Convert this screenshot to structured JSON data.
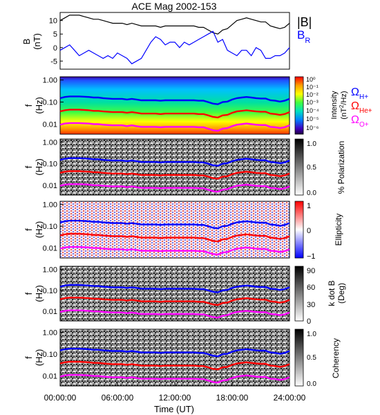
{
  "figure": {
    "title": "ACE Mag 2002-153",
    "xlabel": "Time (UT)",
    "xticks": [
      "00:00:00",
      "06:00:00",
      "12:00:00",
      "18:00:00",
      "24:00:00"
    ]
  },
  "colors": {
    "B_total": "#000000",
    "B_R": "#0000ff",
    "omega_H": "#0000ff",
    "omega_He": "#ff0000",
    "omega_O": "#ff00ff"
  },
  "chart_data": [
    {
      "type": "line",
      "panel": "magnetic-field",
      "ylabel": "B\n(nT)",
      "yticks": [
        "10",
        "5",
        "0",
        "-5"
      ],
      "ylim": [
        -8,
        13
      ],
      "x_hours": [
        0,
        0.5,
        1,
        1.5,
        2,
        2.5,
        3,
        3.5,
        4,
        4.5,
        5,
        5.5,
        6,
        6.5,
        7,
        7.5,
        8,
        8.5,
        9,
        9.5,
        10,
        10.5,
        11,
        11.5,
        12,
        12.5,
        13,
        13.5,
        14,
        14.5,
        15,
        15.5,
        16,
        16.5,
        17,
        17.5,
        18,
        18.5,
        19,
        19.5,
        20,
        20.5,
        21,
        21.5,
        22,
        22.5,
        23,
        23.5,
        24
      ],
      "series": [
        {
          "name": "|B|",
          "values": [
            10,
            11,
            12,
            12,
            12,
            11.5,
            11,
            10.5,
            10.5,
            10,
            9.5,
            9,
            9,
            9,
            8.5,
            9,
            8.5,
            8,
            8,
            8,
            8,
            7.5,
            8,
            8,
            8,
            8,
            8,
            8,
            8,
            7.5,
            7.5,
            6.5,
            5.5,
            5,
            6.5,
            7,
            8.5,
            10,
            10.5,
            11,
            10.5,
            10,
            9.5,
            9.5,
            8,
            7.5,
            7,
            7.5,
            9
          ]
        },
        {
          "name": "B_R",
          "values": [
            -1,
            0,
            1,
            -1,
            -3,
            -2,
            -1,
            -2,
            -3,
            -4,
            -3,
            -4,
            -2,
            -3,
            -4,
            -6,
            -5,
            -4,
            -1,
            2,
            4,
            3,
            1,
            2,
            2,
            0,
            2,
            1,
            2,
            3,
            4,
            5,
            6,
            2,
            3,
            -1,
            -2,
            -3,
            -1,
            -1,
            -3,
            0,
            -1,
            -4,
            -4,
            -3,
            -3,
            -2,
            0
          ]
        }
      ],
      "legend": [
        "|B|",
        "B_R"
      ]
    },
    {
      "type": "heatmap",
      "panel": "intensity",
      "ylabel": "f\n(Hz)",
      "yticks": [
        "1.00",
        "0.10",
        "0.01"
      ],
      "colorbar": {
        "label": "Intensity (nT²/Hz)",
        "ticks": [
          "10⁰",
          "10⁻¹",
          "10⁻²",
          "10⁻³",
          "10⁻⁴",
          "10⁻⁵",
          "10⁻⁶"
        ]
      },
      "legend": [
        "ΩH+",
        "ΩHe+",
        "ΩO+"
      ]
    },
    {
      "type": "heatmap",
      "panel": "polarization",
      "ylabel": "f\n(Hz)",
      "yticks": [
        "1.00",
        "0.10",
        "0.01"
      ],
      "colorbar": {
        "label": "% Polarization",
        "ticks": [
          "1.0",
          "0.5",
          "0.0"
        ]
      }
    },
    {
      "type": "heatmap",
      "panel": "ellipticity",
      "ylabel": "f\n(Hz)",
      "yticks": [
        "1.00",
        "0.10",
        "0.01"
      ],
      "colorbar": {
        "label": "Ellipticity",
        "ticks": [
          "1",
          "0",
          "−1"
        ]
      }
    },
    {
      "type": "heatmap",
      "panel": "k-dot-b",
      "ylabel": "f\n(Hz)",
      "yticks": [
        "1.00",
        "0.10",
        "0.01"
      ],
      "colorbar": {
        "label": "k dot B\n(Deg)",
        "ticks": [
          "90",
          "60",
          "30",
          "0"
        ]
      }
    },
    {
      "type": "heatmap",
      "panel": "coherency",
      "ylabel": "f\n(Hz)",
      "yticks": [
        "1.00",
        "0.10",
        "0.01"
      ],
      "colorbar": {
        "label": "Coherency",
        "ticks": [
          "1.0",
          "0.5",
          "0.0"
        ]
      }
    }
  ],
  "gyrofrequencies": {
    "x_hours": [
      0,
      0.5,
      1,
      1.5,
      2,
      2.5,
      3,
      3.5,
      4,
      4.5,
      5,
      5.5,
      6,
      6.5,
      7,
      7.5,
      8,
      8.5,
      9,
      9.5,
      10,
      10.5,
      11,
      11.5,
      12,
      12.5,
      13,
      13.5,
      14,
      14.5,
      15,
      15.5,
      16,
      16.5,
      17,
      17.5,
      18,
      18.5,
      19,
      19.5,
      20,
      20.5,
      21,
      21.5,
      22,
      22.5,
      23,
      23.5,
      24
    ],
    "omega_H_hz": [
      0.15,
      0.17,
      0.18,
      0.18,
      0.18,
      0.175,
      0.17,
      0.16,
      0.16,
      0.15,
      0.145,
      0.14,
      0.14,
      0.14,
      0.13,
      0.14,
      0.13,
      0.12,
      0.12,
      0.12,
      0.12,
      0.115,
      0.12,
      0.12,
      0.12,
      0.12,
      0.12,
      0.12,
      0.12,
      0.115,
      0.115,
      0.1,
      0.085,
      0.08,
      0.1,
      0.105,
      0.13,
      0.15,
      0.16,
      0.17,
      0.16,
      0.15,
      0.145,
      0.145,
      0.12,
      0.115,
      0.105,
      0.115,
      0.14
    ],
    "omega_He_hz": [
      0.0375,
      0.0425,
      0.045,
      0.045,
      0.045,
      0.0437,
      0.0425,
      0.04,
      0.04,
      0.0375,
      0.0362,
      0.035,
      0.035,
      0.035,
      0.0325,
      0.035,
      0.0325,
      0.03,
      0.03,
      0.03,
      0.03,
      0.0287,
      0.03,
      0.03,
      0.03,
      0.03,
      0.03,
      0.03,
      0.03,
      0.0287,
      0.0287,
      0.025,
      0.0212,
      0.02,
      0.025,
      0.0262,
      0.0325,
      0.0375,
      0.04,
      0.0425,
      0.04,
      0.0375,
      0.0362,
      0.0362,
      0.03,
      0.0287,
      0.0262,
      0.0287,
      0.035
    ],
    "omega_O_hz": [
      0.0094,
      0.0106,
      0.0112,
      0.0112,
      0.0112,
      0.0109,
      0.0106,
      0.01,
      0.01,
      0.0094,
      0.0091,
      0.0088,
      0.0088,
      0.0088,
      0.0081,
      0.0088,
      0.0081,
      0.0075,
      0.0075,
      0.0075,
      0.0075,
      0.0072,
      0.0075,
      0.0075,
      0.0075,
      0.0075,
      0.0075,
      0.0075,
      0.0075,
      0.0072,
      0.0072,
      0.0062,
      0.0053,
      0.005,
      0.0062,
      0.0066,
      0.0081,
      0.0094,
      0.01,
      0.0106,
      0.01,
      0.0094,
      0.0091,
      0.0091,
      0.0075,
      0.0072,
      0.0066,
      0.0072,
      0.0088
    ]
  }
}
